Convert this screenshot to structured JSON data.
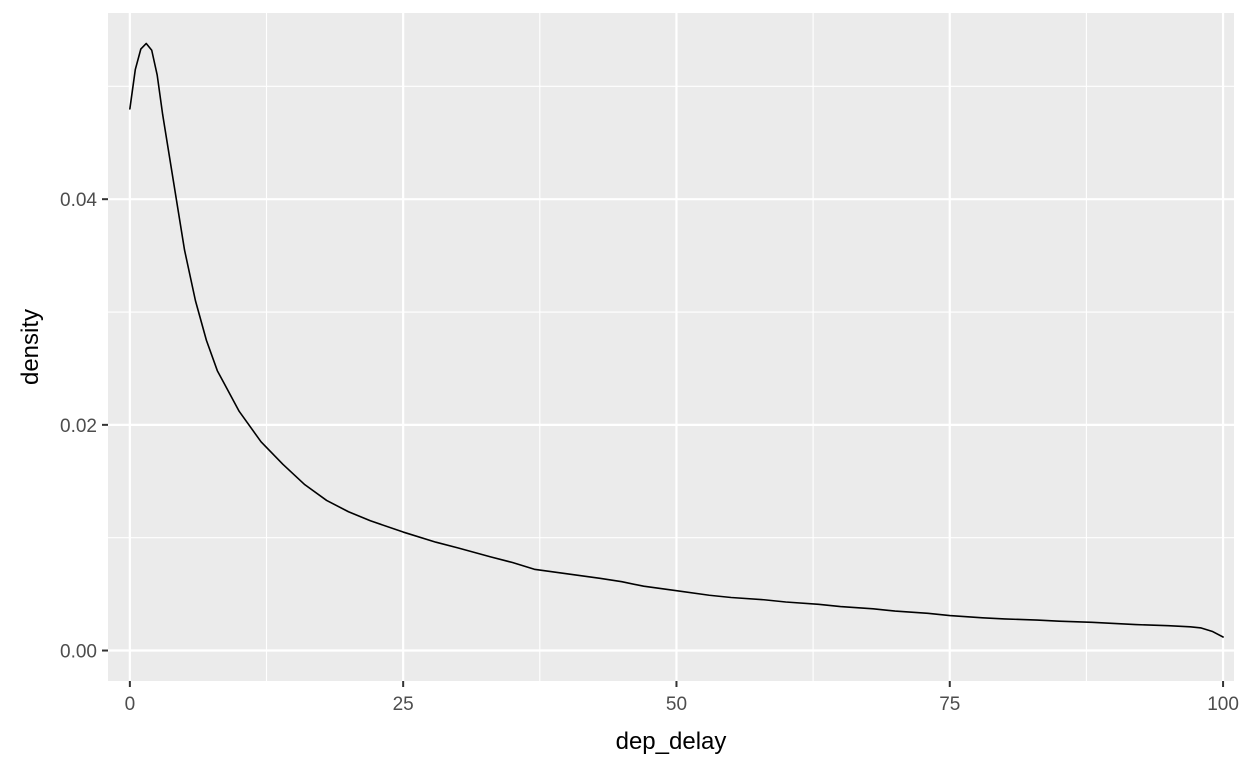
{
  "chart_data": {
    "type": "line",
    "title": "",
    "xlabel": "dep_delay",
    "ylabel": "density",
    "xlim": [
      -2,
      101
    ],
    "ylim": [
      -0.0027,
      0.0565
    ],
    "x_ticks": [
      0,
      25,
      50,
      75,
      100
    ],
    "x_tick_labels": [
      "0",
      "25",
      "50",
      "75",
      "100"
    ],
    "y_ticks": [
      0.0,
      0.02,
      0.04
    ],
    "y_tick_labels": [
      "0.00",
      "0.02",
      "0.04"
    ],
    "grid": true,
    "legend": "none",
    "colors": {
      "panel": "#ebebeb",
      "grid": "#ffffff",
      "line": "#000000"
    },
    "series": [
      {
        "x": [
          0,
          0.5,
          1,
          1.5,
          2,
          2.5,
          3,
          4,
          5,
          6,
          7,
          8,
          10,
          12,
          14,
          16,
          18,
          20,
          22,
          25,
          28,
          30,
          33,
          35,
          37,
          40,
          43,
          45,
          47,
          50,
          53,
          55,
          58,
          60,
          63,
          65,
          68,
          70,
          73,
          75,
          78,
          80,
          83,
          85,
          88,
          90,
          92,
          95,
          97,
          98,
          99,
          100
        ],
        "y": [
          0.048,
          0.0515,
          0.0533,
          0.0538,
          0.0532,
          0.051,
          0.0475,
          0.0415,
          0.0355,
          0.031,
          0.0275,
          0.0248,
          0.0212,
          0.0185,
          0.0165,
          0.0147,
          0.0133,
          0.0123,
          0.0115,
          0.0105,
          0.0096,
          0.0091,
          0.0083,
          0.0078,
          0.0072,
          0.0068,
          0.0064,
          0.0061,
          0.0057,
          0.0053,
          0.0049,
          0.0047,
          0.0045,
          0.0043,
          0.0041,
          0.0039,
          0.0037,
          0.0035,
          0.0033,
          0.0031,
          0.0029,
          0.0028,
          0.0027,
          0.0026,
          0.0025,
          0.0024,
          0.0023,
          0.0022,
          0.0021,
          0.002,
          0.0017,
          0.0012
        ]
      }
    ]
  }
}
